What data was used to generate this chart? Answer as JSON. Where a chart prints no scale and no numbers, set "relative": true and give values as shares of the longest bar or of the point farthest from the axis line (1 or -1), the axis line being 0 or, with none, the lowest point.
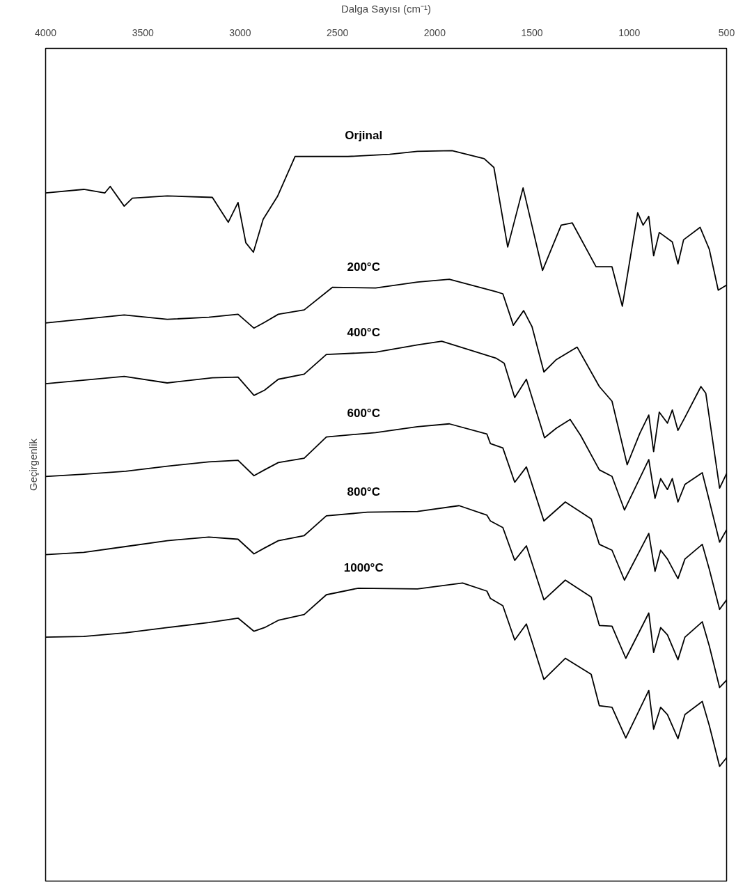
{
  "chart_data": {
    "type": "line",
    "relative": true,
    "tick_labels": "x",
    "xlabel": "Dalga Sayısı (cm⁻¹)",
    "ylabel": "Geçirgenlik",
    "xlim": [
      4000,
      500
    ],
    "xticks": [
      4000,
      3500,
      3000,
      2500,
      2000,
      1500,
      1000,
      500
    ],
    "series": [
      {
        "name": "Orjinal",
        "color": "#000000",
        "x": [
          4000,
          3804,
          3696,
          3668,
          3596,
          3554,
          3375,
          3143,
          3061,
          3011,
          2971,
          2932,
          2882,
          2807,
          2718,
          2446,
          2232,
          2089,
          1911,
          1746,
          1696,
          1625,
          1546,
          1446,
          1350,
          1293,
          1171,
          1089,
          1036,
          957,
          929,
          900,
          875,
          846,
          779,
          750,
          721,
          636,
          589,
          543,
          500
        ],
        "values": [
          0.942,
          0.947,
          0.942,
          0.951,
          0.924,
          0.935,
          0.938,
          0.936,
          0.902,
          0.929,
          0.874,
          0.861,
          0.906,
          0.938,
          0.992,
          0.992,
          0.995,
          0.999,
          1.0,
          0.989,
          0.977,
          0.868,
          0.949,
          0.836,
          0.898,
          0.901,
          0.841,
          0.841,
          0.787,
          0.915,
          0.898,
          0.91,
          0.856,
          0.888,
          0.875,
          0.845,
          0.878,
          0.895,
          0.865,
          0.809,
          0.816
        ]
      },
      {
        "name": "200°C",
        "color": "#000000",
        "x": [
          4000,
          3596,
          3375,
          3161,
          3011,
          2929,
          2875,
          2804,
          2671,
          2525,
          2304,
          2089,
          1925,
          1686,
          1650,
          1596,
          1543,
          1500,
          1439,
          1375,
          1268,
          1154,
          1089,
          1011,
          946,
          900,
          875,
          846,
          804,
          779,
          750,
          714,
          632,
          607,
          536,
          500
        ],
        "values": [
          0.764,
          0.775,
          0.769,
          0.772,
          0.776,
          0.757,
          0.765,
          0.776,
          0.782,
          0.813,
          0.812,
          0.82,
          0.824,
          0.807,
          0.804,
          0.761,
          0.781,
          0.759,
          0.697,
          0.714,
          0.731,
          0.677,
          0.657,
          0.57,
          0.613,
          0.638,
          0.588,
          0.642,
          0.627,
          0.645,
          0.617,
          0.635,
          0.677,
          0.668,
          0.538,
          0.558
        ]
      },
      {
        "name": "400°C",
        "color": "#000000",
        "x": [
          4000,
          3596,
          3375,
          3143,
          3011,
          2929,
          2875,
          2804,
          2671,
          2557,
          2304,
          2089,
          1964,
          1686,
          1643,
          1589,
          1529,
          1436,
          1375,
          1304,
          1250,
          1154,
          1089,
          1025,
          900,
          868,
          839,
          804,
          779,
          750,
          714,
          625,
          589,
          536,
          500
        ],
        "values": [
          0.681,
          0.691,
          0.682,
          0.689,
          0.69,
          0.665,
          0.672,
          0.687,
          0.694,
          0.721,
          0.724,
          0.734,
          0.739,
          0.716,
          0.709,
          0.662,
          0.687,
          0.607,
          0.62,
          0.632,
          0.61,
          0.563,
          0.554,
          0.508,
          0.577,
          0.524,
          0.551,
          0.536,
          0.551,
          0.519,
          0.543,
          0.559,
          0.521,
          0.464,
          0.481
        ]
      },
      {
        "name": "600°C",
        "color": "#000000",
        "x": [
          4000,
          3804,
          3589,
          3375,
          3161,
          3011,
          2929,
          2875,
          2804,
          2671,
          2557,
          2304,
          2089,
          1925,
          1732,
          1714,
          1650,
          1589,
          1529,
          1439,
          1329,
          1196,
          1154,
          1089,
          1025,
          900,
          868,
          839,
          804,
          750,
          714,
          625,
          589,
          536,
          500
        ],
        "values": [
          0.554,
          0.557,
          0.561,
          0.568,
          0.574,
          0.576,
          0.555,
          0.563,
          0.573,
          0.579,
          0.608,
          0.614,
          0.622,
          0.626,
          0.612,
          0.599,
          0.593,
          0.546,
          0.567,
          0.493,
          0.519,
          0.496,
          0.461,
          0.453,
          0.412,
          0.476,
          0.424,
          0.453,
          0.441,
          0.414,
          0.441,
          0.461,
          0.427,
          0.372,
          0.385
        ]
      },
      {
        "name": "800°C",
        "color": "#000000",
        "x": [
          4000,
          3804,
          3589,
          3375,
          3161,
          3011,
          2929,
          2875,
          2804,
          2671,
          2557,
          2346,
          2089,
          1875,
          1732,
          1714,
          1650,
          1589,
          1529,
          1439,
          1329,
          1196,
          1154,
          1089,
          1018,
          900,
          875,
          839,
          804,
          750,
          714,
          625,
          589,
          536,
          500
        ],
        "values": [
          0.447,
          0.45,
          0.458,
          0.466,
          0.471,
          0.468,
          0.448,
          0.456,
          0.466,
          0.473,
          0.5,
          0.505,
          0.506,
          0.514,
          0.501,
          0.493,
          0.484,
          0.439,
          0.459,
          0.385,
          0.412,
          0.389,
          0.35,
          0.349,
          0.305,
          0.367,
          0.313,
          0.347,
          0.337,
          0.303,
          0.334,
          0.355,
          0.322,
          0.265,
          0.275
        ]
      },
      {
        "name": "1000°C",
        "color": "#000000",
        "x": [
          4000,
          3804,
          3589,
          3375,
          3161,
          3011,
          2929,
          2875,
          2804,
          2671,
          2557,
          2393,
          2089,
          1857,
          1732,
          1714,
          1650,
          1589,
          1529,
          1439,
          1329,
          1196,
          1154,
          1089,
          1018,
          900,
          875,
          839,
          804,
          750,
          714,
          625,
          589,
          536,
          500
        ],
        "values": [
          0.334,
          0.335,
          0.34,
          0.347,
          0.354,
          0.36,
          0.342,
          0.347,
          0.357,
          0.365,
          0.392,
          0.401,
          0.4,
          0.408,
          0.397,
          0.387,
          0.377,
          0.33,
          0.352,
          0.276,
          0.305,
          0.283,
          0.24,
          0.238,
          0.196,
          0.261,
          0.208,
          0.238,
          0.228,
          0.195,
          0.228,
          0.246,
          0.213,
          0.157,
          0.169
        ]
      }
    ]
  }
}
